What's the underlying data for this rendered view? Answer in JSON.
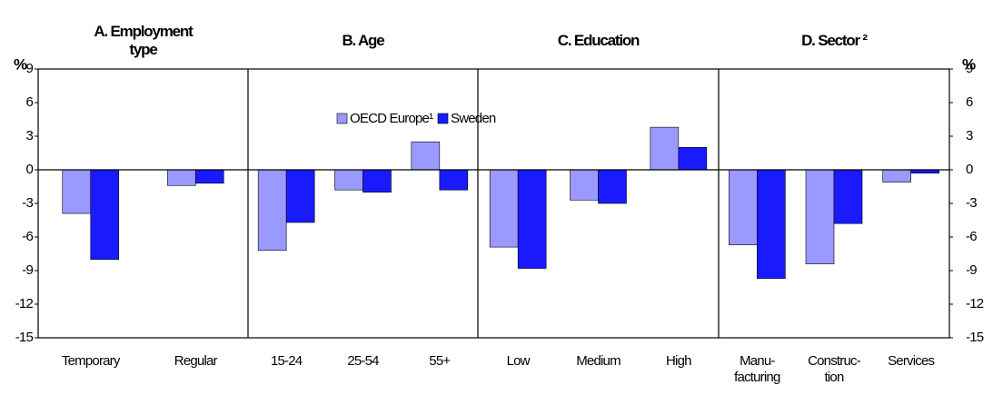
{
  "chart_data": {
    "type": "bar",
    "y_label_left": "%",
    "y_label_right": "%",
    "panels": [
      {
        "title": [
          "A. Employment",
          "type"
        ],
        "categories": [
          [
            "Temporary"
          ],
          [
            "Regular"
          ]
        ]
      },
      {
        "title": [
          "B. Age"
        ],
        "categories": [
          [
            "15-24"
          ],
          [
            "25-54"
          ],
          [
            "55+"
          ]
        ]
      },
      {
        "title": [
          "C. Education"
        ],
        "categories": [
          [
            "Low"
          ],
          [
            "Medium"
          ],
          [
            "High"
          ]
        ]
      },
      {
        "title": [
          "D. Sector ²"
        ],
        "categories": [
          [
            "Manu-",
            "facturing"
          ],
          [
            "Construc-",
            "tion"
          ],
          [
            "Services"
          ]
        ]
      }
    ],
    "series": [
      {
        "name": "OECD Europe¹",
        "color": "#9999ff",
        "values": [
          -3.9,
          -1.4,
          -7.2,
          -1.8,
          2.5,
          -6.9,
          -2.7,
          3.8,
          -6.7,
          -8.4,
          -1.1
        ]
      },
      {
        "name": "Sweden",
        "color": "#1a1aff",
        "values": [
          -8.0,
          -1.2,
          -4.7,
          -2.0,
          -1.8,
          -8.8,
          -3.0,
          2.0,
          -9.7,
          -4.8,
          -0.3
        ]
      }
    ],
    "ylim": [
      -15,
      9
    ],
    "yticks": [
      -15,
      -12,
      -9,
      -6,
      -3,
      0,
      3,
      6,
      9
    ]
  }
}
